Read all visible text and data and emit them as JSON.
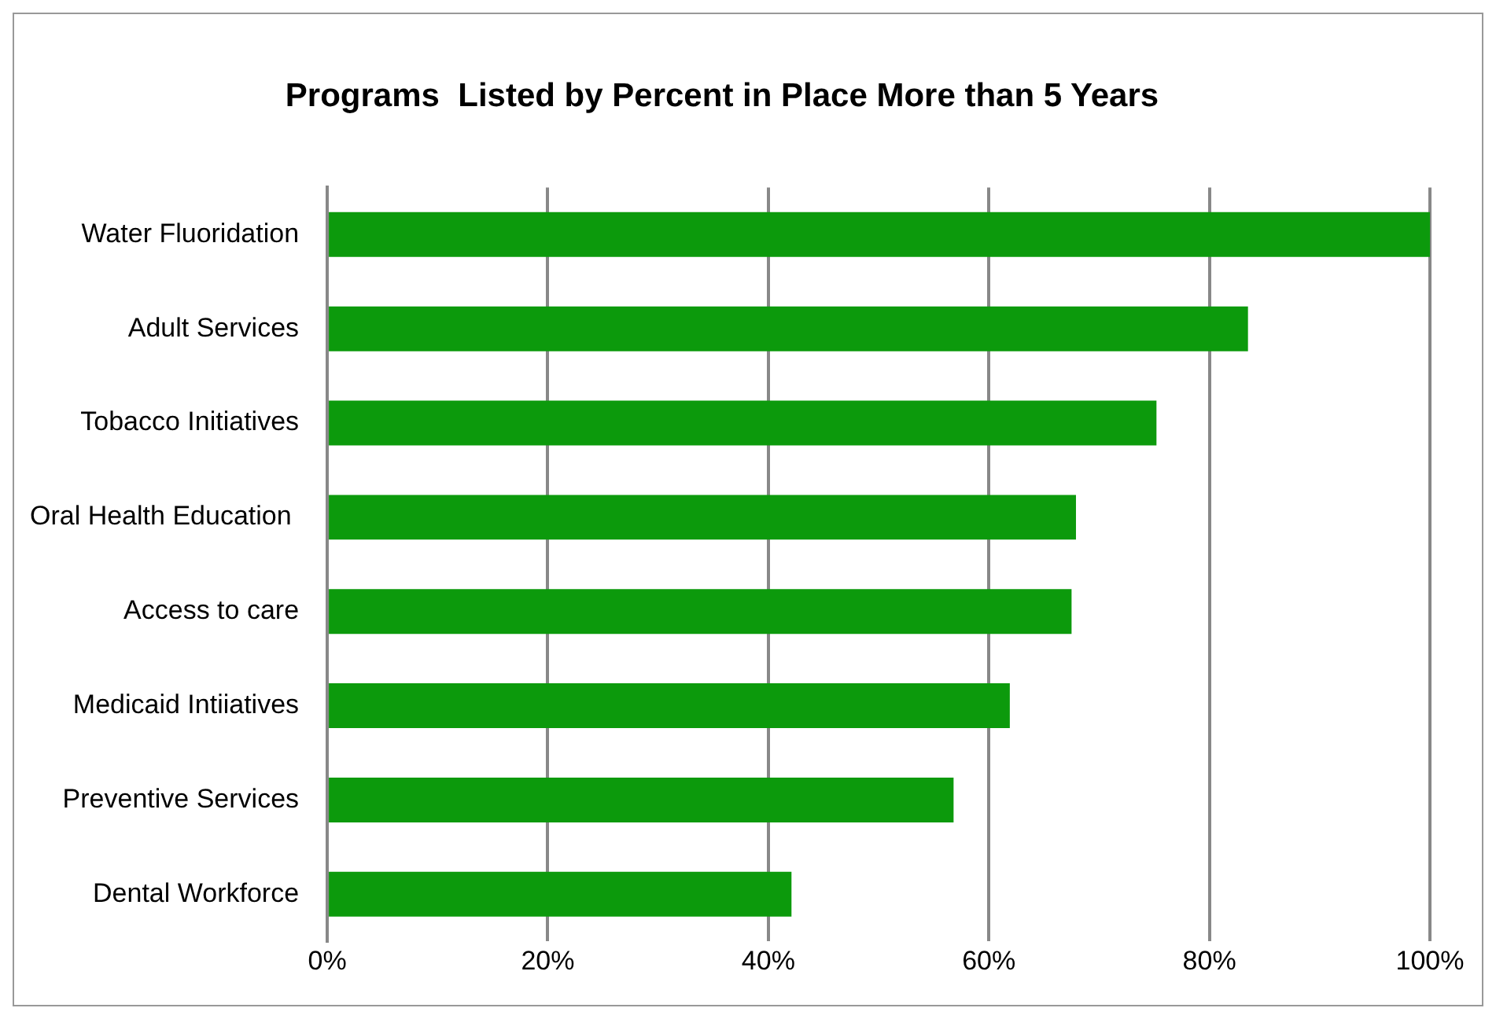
{
  "chart_data": {
    "type": "bar",
    "orientation": "horizontal",
    "title": "Programs  Listed by Percent in Place More than 5 Years",
    "categories": [
      "Water Fluoridation",
      "Adult Services",
      "Tobacco Initiatives",
      "Oral Health Education ",
      "Access to care",
      "Medicaid Intiiatives",
      "Preventive Services",
      "Dental Workforce"
    ],
    "values": [
      100,
      83.5,
      75.2,
      67.9,
      67.5,
      61.9,
      56.8,
      42.1
    ],
    "color": "#0c9a0c",
    "xlim": [
      0,
      100
    ],
    "xticks": [
      {
        "value": 0,
        "label": "0%"
      },
      {
        "value": 20,
        "label": "20%"
      },
      {
        "value": 40,
        "label": "40%"
      },
      {
        "value": 60,
        "label": "60%"
      },
      {
        "value": 80,
        "label": "80%"
      },
      {
        "value": 100,
        "label": "100%"
      }
    ],
    "grid": "x",
    "legend": false
  }
}
